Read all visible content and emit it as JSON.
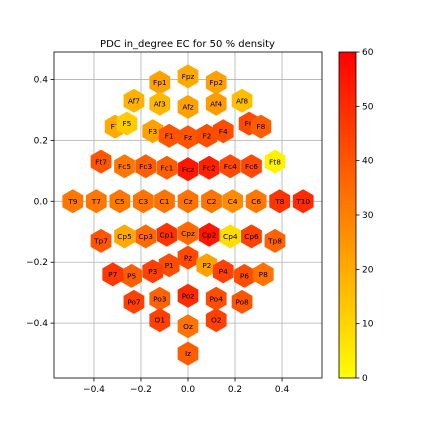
{
  "chart_data": {
    "type": "scatter",
    "title": "PDC in_degree EC for 50 % density",
    "xlabel": "",
    "ylabel": "",
    "xlim": [
      -0.57,
      0.57
    ],
    "ylim": [
      -0.58,
      0.49
    ],
    "xticks": [
      -0.4,
      -0.2,
      0.0,
      0.2,
      0.4
    ],
    "xtick_labels": [
      "−0.4",
      "−0.2",
      "0.0",
      "0.2",
      "0.4"
    ],
    "yticks": [
      -0.4,
      -0.2,
      0.0,
      0.2,
      0.4
    ],
    "ytick_labels": [
      "−0.4",
      "−0.2",
      "0.0",
      "0.2",
      "0.4"
    ],
    "grid": true,
    "marker": "hexagon",
    "colormap": "autumn_r",
    "colors": {
      "low": "#ffff00",
      "mid": "#ff8000",
      "high": "#ff0000"
    },
    "colorbar": {
      "vmin": 0,
      "vmax": 60,
      "ticks": [
        0,
        10,
        20,
        30,
        40,
        50,
        60
      ],
      "tick_labels": [
        "0",
        "10",
        "20",
        "30",
        "40",
        "50",
        "60"
      ]
    },
    "points": [
      {
        "label": "Fpz",
        "x": 0.0,
        "y": 0.41,
        "value": 20
      },
      {
        "label": "Fp1",
        "x": -0.12,
        "y": 0.39,
        "value": 22
      },
      {
        "label": "Fp2",
        "x": 0.12,
        "y": 0.39,
        "value": 22
      },
      {
        "label": "Af7",
        "x": -0.23,
        "y": 0.33,
        "value": 18
      },
      {
        "label": "Af8",
        "x": 0.23,
        "y": 0.33,
        "value": 15
      },
      {
        "label": "Af3",
        "x": -0.12,
        "y": 0.32,
        "value": 17
      },
      {
        "label": "Afz",
        "x": 0.0,
        "y": 0.31,
        "value": 22
      },
      {
        "label": "Af4",
        "x": 0.12,
        "y": 0.32,
        "value": 23
      },
      {
        "label": "F7",
        "x": -0.31,
        "y": 0.245,
        "value": 20
      },
      {
        "label": "F5",
        "x": -0.26,
        "y": 0.255,
        "value": 12
      },
      {
        "label": "F3",
        "x": -0.15,
        "y": 0.23,
        "value": 22
      },
      {
        "label": "F1",
        "x": -0.08,
        "y": 0.215,
        "value": 40
      },
      {
        "label": "Fz",
        "x": 0.0,
        "y": 0.21,
        "value": 40
      },
      {
        "label": "F2",
        "x": 0.08,
        "y": 0.215,
        "value": 42
      },
      {
        "label": "F4",
        "x": 0.15,
        "y": 0.23,
        "value": 42
      },
      {
        "label": "F6",
        "x": 0.26,
        "y": 0.255,
        "value": 43
      },
      {
        "label": "F8",
        "x": 0.31,
        "y": 0.245,
        "value": 38
      },
      {
        "label": "Ft7",
        "x": -0.37,
        "y": 0.13,
        "value": 40
      },
      {
        "label": "Fc5",
        "x": -0.27,
        "y": 0.115,
        "value": 32
      },
      {
        "label": "Fc3",
        "x": -0.18,
        "y": 0.115,
        "value": 38
      },
      {
        "label": "Fc1",
        "x": -0.09,
        "y": 0.11,
        "value": 38
      },
      {
        "label": "Fcz",
        "x": 0.0,
        "y": 0.105,
        "value": 55
      },
      {
        "label": "Fc2",
        "x": 0.09,
        "y": 0.11,
        "value": 52
      },
      {
        "label": "Fc4",
        "x": 0.18,
        "y": 0.115,
        "value": 43
      },
      {
        "label": "Fc6",
        "x": 0.27,
        "y": 0.115,
        "value": 43
      },
      {
        "label": "Ft8",
        "x": 0.37,
        "y": 0.13,
        "value": 3
      },
      {
        "label": "T9",
        "x": -0.49,
        "y": 0.0,
        "value": 32
      },
      {
        "label": "T7",
        "x": -0.39,
        "y": 0.0,
        "value": 32
      },
      {
        "label": "C5",
        "x": -0.29,
        "y": 0.0,
        "value": 32
      },
      {
        "label": "C3",
        "x": -0.19,
        "y": 0.0,
        "value": 33
      },
      {
        "label": "C1",
        "x": -0.1,
        "y": 0.0,
        "value": 33
      },
      {
        "label": "Cz",
        "x": 0.0,
        "y": 0.0,
        "value": 33
      },
      {
        "label": "C2",
        "x": 0.1,
        "y": 0.0,
        "value": 33
      },
      {
        "label": "C4",
        "x": 0.19,
        "y": 0.0,
        "value": 27
      },
      {
        "label": "C6",
        "x": 0.29,
        "y": 0.0,
        "value": 32
      },
      {
        "label": "T8",
        "x": 0.39,
        "y": 0.0,
        "value": 48
      },
      {
        "label": "T10",
        "x": 0.49,
        "y": 0.0,
        "value": 50
      },
      {
        "label": "Tp7",
        "x": -0.37,
        "y": -0.13,
        "value": 40
      },
      {
        "label": "Cp5",
        "x": -0.27,
        "y": -0.115,
        "value": 20
      },
      {
        "label": "Cp3",
        "x": -0.18,
        "y": -0.115,
        "value": 35
      },
      {
        "label": "Cp1",
        "x": -0.09,
        "y": -0.11,
        "value": 48
      },
      {
        "label": "Cpz",
        "x": 0.0,
        "y": -0.105,
        "value": 35
      },
      {
        "label": "Cp2",
        "x": 0.09,
        "y": -0.11,
        "value": 55
      },
      {
        "label": "Cp4",
        "x": 0.18,
        "y": -0.115,
        "value": 8
      },
      {
        "label": "Cp6",
        "x": 0.27,
        "y": -0.115,
        "value": 45
      },
      {
        "label": "Tp8",
        "x": 0.37,
        "y": -0.13,
        "value": 37
      },
      {
        "label": "Pz",
        "x": 0.0,
        "y": -0.185,
        "value": 43
      },
      {
        "label": "P1",
        "x": -0.08,
        "y": -0.21,
        "value": 42
      },
      {
        "label": "P2",
        "x": 0.08,
        "y": -0.21,
        "value": 22
      },
      {
        "label": "P3",
        "x": -0.15,
        "y": -0.23,
        "value": 45
      },
      {
        "label": "P4",
        "x": 0.15,
        "y": -0.23,
        "value": 45
      },
      {
        "label": "P5",
        "x": -0.24,
        "y": -0.245,
        "value": 38
      },
      {
        "label": "P6",
        "x": 0.24,
        "y": -0.245,
        "value": 42
      },
      {
        "label": "P7",
        "x": -0.32,
        "y": -0.24,
        "value": 47
      },
      {
        "label": "P8",
        "x": 0.32,
        "y": -0.24,
        "value": 33
      },
      {
        "label": "Po7",
        "x": -0.23,
        "y": -0.33,
        "value": 45
      },
      {
        "label": "Po3",
        "x": -0.12,
        "y": -0.32,
        "value": 37
      },
      {
        "label": "Poz",
        "x": 0.0,
        "y": -0.31,
        "value": 50
      },
      {
        "label": "Po4",
        "x": 0.12,
        "y": -0.32,
        "value": 42
      },
      {
        "label": "Po8",
        "x": 0.23,
        "y": -0.33,
        "value": 40
      },
      {
        "label": "O1",
        "x": -0.12,
        "y": -0.39,
        "value": 45
      },
      {
        "label": "Oz",
        "x": 0.0,
        "y": -0.41,
        "value": 33
      },
      {
        "label": "O2",
        "x": 0.12,
        "y": -0.39,
        "value": 45
      },
      {
        "label": "Iz",
        "x": 0.0,
        "y": -0.5,
        "value": 38
      }
    ]
  }
}
